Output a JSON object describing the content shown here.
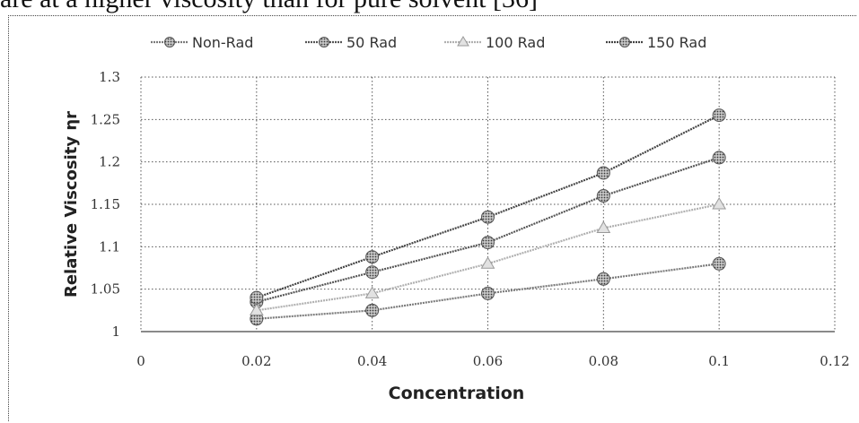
{
  "header_text": "are at a higher viscosity than for pure solvent [36]",
  "chart_data": {
    "type": "line",
    "title": "",
    "xlabel": "Concentration",
    "ylabel": "Relative Viscosity ηr",
    "xlim": [
      0,
      0.12
    ],
    "ylim": [
      1,
      1.3
    ],
    "x_ticks": [
      "0",
      "0.02",
      "0.04",
      "0.06",
      "0.08",
      "0.1",
      "0.12"
    ],
    "y_ticks": [
      "1",
      "1.05",
      "1.1",
      "1.15",
      "1.2",
      "1.25",
      "1.3"
    ],
    "grid": true,
    "legend_position": "top",
    "x": [
      0.02,
      0.04,
      0.06,
      0.08,
      0.1
    ],
    "series": [
      {
        "name": "Non-Rad",
        "marker": "circle",
        "color": "#7a7a7a",
        "values": [
          1.015,
          1.025,
          1.045,
          1.062,
          1.08
        ]
      },
      {
        "name": "50 Rad",
        "marker": "circle",
        "color": "#555555",
        "values": [
          1.035,
          1.07,
          1.105,
          1.16,
          1.205
        ]
      },
      {
        "name": "100 Rad",
        "marker": "triangle",
        "color": "#b0b0b0",
        "values": [
          1.025,
          1.045,
          1.08,
          1.122,
          1.15
        ]
      },
      {
        "name": "150 Rad",
        "marker": "circle",
        "color": "#444444",
        "values": [
          1.04,
          1.088,
          1.135,
          1.187,
          1.255
        ]
      }
    ]
  }
}
